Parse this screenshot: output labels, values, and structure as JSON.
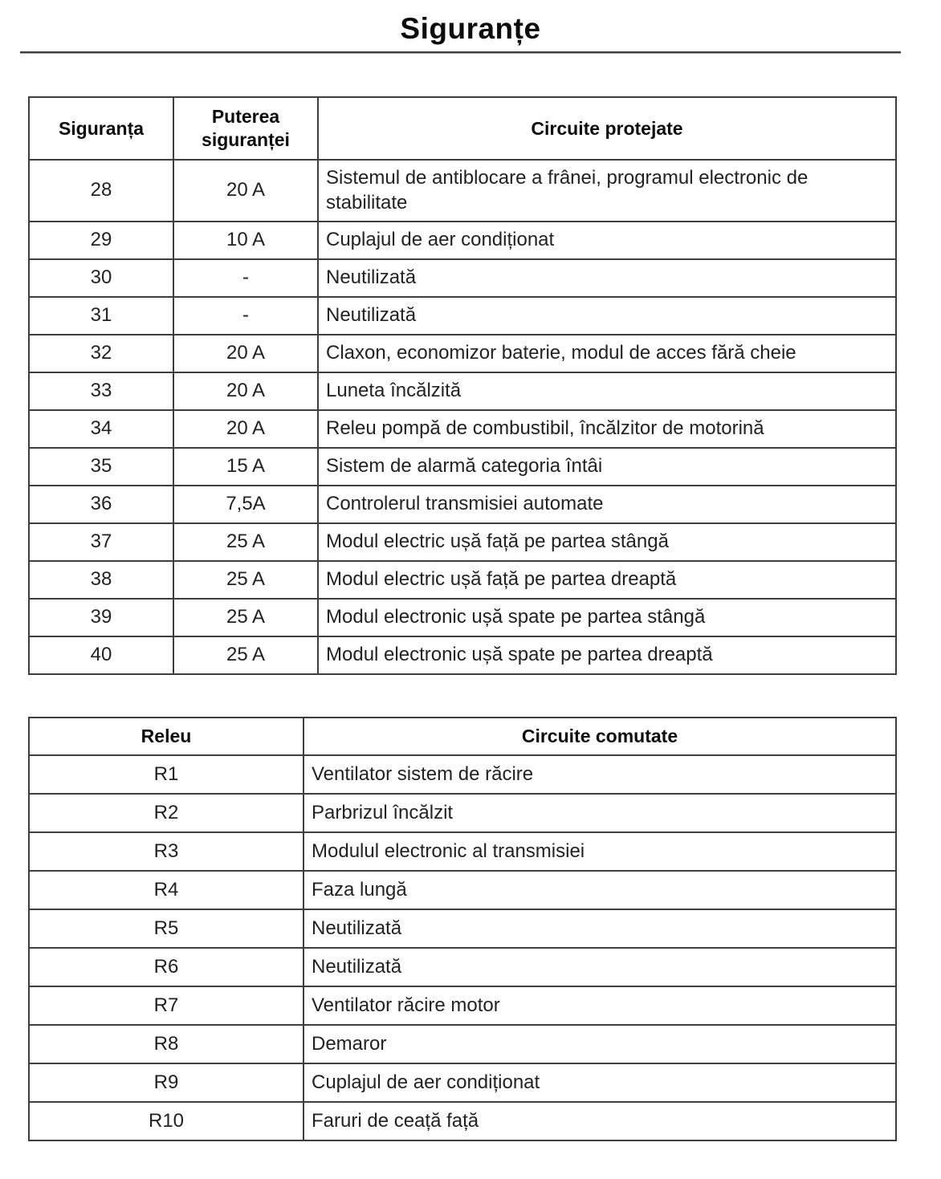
{
  "page": {
    "title": "Siguranțe"
  },
  "fuse_table": {
    "headers": {
      "fuse": "Siguranța",
      "rating": "Puterea siguranței",
      "circuits": "Circuite protejate"
    },
    "rows": [
      {
        "fuse": "28",
        "rating": "20 A",
        "circuits": "Sistemul de antiblocare a frânei, programul electronic de stabilitate"
      },
      {
        "fuse": "29",
        "rating": "10 A",
        "circuits": "Cuplajul de aer condiționat"
      },
      {
        "fuse": "30",
        "rating": "-",
        "circuits": "Neutilizată"
      },
      {
        "fuse": "31",
        "rating": "-",
        "circuits": "Neutilizată"
      },
      {
        "fuse": "32",
        "rating": "20 A",
        "circuits": "Claxon, economizor baterie, modul de acces fără cheie"
      },
      {
        "fuse": "33",
        "rating": "20 A",
        "circuits": "Luneta încălzită"
      },
      {
        "fuse": "34",
        "rating": "20 A",
        "circuits": "Releu pompă de combustibil, încălzitor de motorină"
      },
      {
        "fuse": "35",
        "rating": "15 A",
        "circuits": "Sistem de alarmă categoria întâi"
      },
      {
        "fuse": "36",
        "rating": "7,5A",
        "circuits": "Controlerul transmisiei automate"
      },
      {
        "fuse": "37",
        "rating": "25 A",
        "circuits": "Modul electric ușă față pe partea stângă"
      },
      {
        "fuse": "38",
        "rating": "25 A",
        "circuits": "Modul electric ușă față pe partea dreaptă"
      },
      {
        "fuse": "39",
        "rating": "25 A",
        "circuits": "Modul electronic ușă spate pe partea stângă"
      },
      {
        "fuse": "40",
        "rating": "25 A",
        "circuits": "Modul electronic ușă spate pe partea dreaptă"
      }
    ]
  },
  "relay_table": {
    "headers": {
      "relay": "Releu",
      "circuits": "Circuite comutate"
    },
    "rows": [
      {
        "relay": "R1",
        "circuits": "Ventilator sistem de răcire"
      },
      {
        "relay": "R2",
        "circuits": "Parbrizul încălzit"
      },
      {
        "relay": "R3",
        "circuits": "Modulul electronic al transmisiei"
      },
      {
        "relay": "R4",
        "circuits": "Faza lungă"
      },
      {
        "relay": "R5",
        "circuits": "Neutilizată"
      },
      {
        "relay": "R6",
        "circuits": "Neutilizată"
      },
      {
        "relay": "R7",
        "circuits": "Ventilator răcire motor"
      },
      {
        "relay": "R8",
        "circuits": "Demaror"
      },
      {
        "relay": "R9",
        "circuits": "Cuplajul de aer condiționat"
      },
      {
        "relay": "R10",
        "circuits": "Faruri de ceață față"
      }
    ]
  }
}
